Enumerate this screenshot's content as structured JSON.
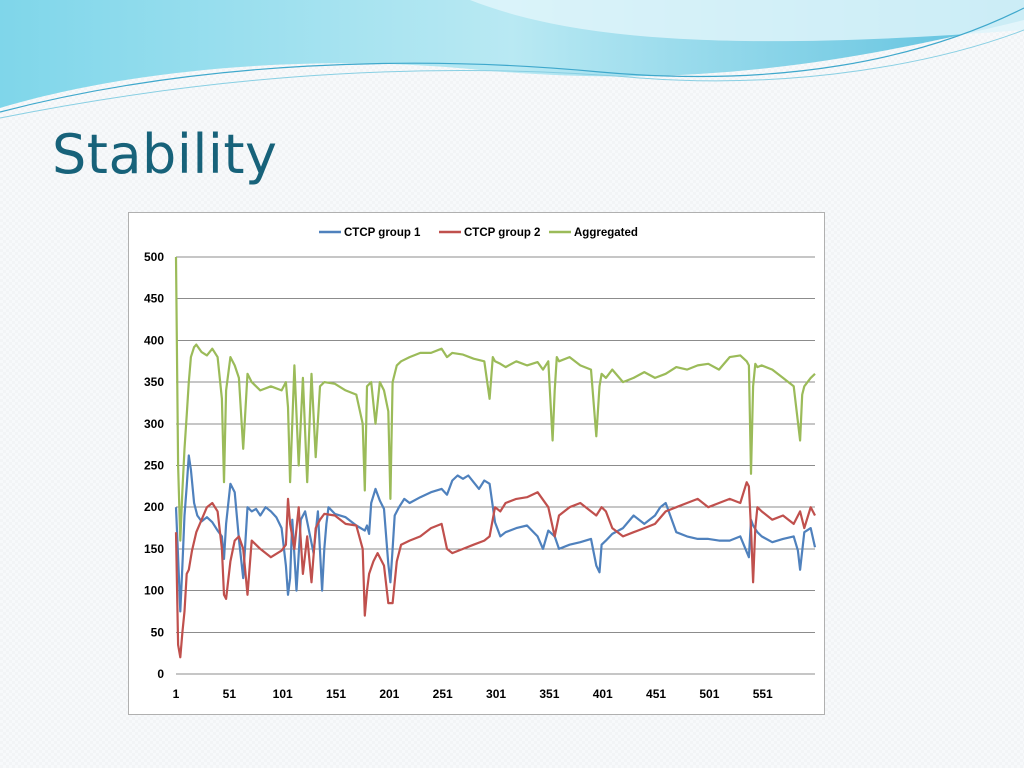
{
  "slide": {
    "title": "Stability"
  },
  "chart_data": {
    "type": "line",
    "title": "",
    "xlabel": "",
    "ylabel": "",
    "ylim": [
      0,
      500
    ],
    "xlim": [
      1,
      600
    ],
    "y_ticks": [
      0,
      50,
      100,
      150,
      200,
      250,
      300,
      350,
      400,
      450,
      500
    ],
    "x_ticks": [
      1,
      51,
      101,
      151,
      201,
      251,
      301,
      351,
      401,
      451,
      501,
      551
    ],
    "grid": "horizontal",
    "legend_position": "top",
    "series": [
      {
        "name": "CTCP group 1",
        "color": "#4f81bd",
        "x": [
          1,
          3,
          5,
          7,
          9,
          11,
          13,
          15,
          18,
          21,
          25,
          30,
          35,
          40,
          44,
          46,
          48,
          52,
          56,
          60,
          64,
          68,
          72,
          76,
          80,
          85,
          90,
          95,
          100,
          104,
          106,
          108,
          110,
          114,
          118,
          122,
          126,
          130,
          134,
          138,
          140,
          142,
          144,
          150,
          160,
          170,
          178,
          180,
          182,
          184,
          188,
          192,
          196,
          200,
          202,
          204,
          206,
          210,
          215,
          220,
          230,
          240,
          250,
          255,
          260,
          265,
          270,
          275,
          280,
          285,
          290,
          295,
          300,
          305,
          310,
          320,
          330,
          340,
          345,
          350,
          356,
          360,
          370,
          380,
          390,
          395,
          398,
          400,
          404,
          410,
          420,
          430,
          440,
          450,
          455,
          460,
          470,
          480,
          490,
          500,
          510,
          520,
          530,
          538,
          540,
          542,
          546,
          550,
          560,
          570,
          580,
          584,
          586,
          590,
          596,
          600
        ],
        "values": [
          200,
          140,
          75,
          130,
          190,
          225,
          262,
          245,
          205,
          190,
          183,
          188,
          182,
          172,
          165,
          138,
          180,
          228,
          218,
          162,
          115,
          200,
          195,
          198,
          190,
          200,
          195,
          188,
          175,
          130,
          95,
          115,
          185,
          100,
          185,
          195,
          170,
          145,
          195,
          100,
          150,
          180,
          200,
          192,
          188,
          178,
          172,
          178,
          168,
          205,
          222,
          208,
          198,
          132,
          110,
          150,
          190,
          200,
          210,
          205,
          212,
          218,
          222,
          215,
          232,
          238,
          234,
          238,
          230,
          222,
          232,
          228,
          182,
          165,
          170,
          175,
          178,
          165,
          150,
          172,
          165,
          150,
          155,
          158,
          162,
          130,
          122,
          155,
          160,
          168,
          175,
          190,
          180,
          190,
          200,
          205,
          170,
          165,
          162,
          162,
          160,
          160,
          165,
          140,
          185,
          178,
          170,
          165,
          158,
          162,
          165,
          148,
          125,
          170,
          175,
          152
        ]
      },
      {
        "name": "CTCP group 2",
        "color": "#c0504d",
        "x": [
          1,
          3,
          5,
          7,
          9,
          11,
          13,
          16,
          20,
          25,
          30,
          35,
          40,
          44,
          46,
          48,
          52,
          56,
          60,
          64,
          68,
          72,
          80,
          90,
          100,
          104,
          106,
          108,
          112,
          116,
          120,
          124,
          128,
          132,
          136,
          140,
          150,
          160,
          170,
          176,
          178,
          180,
          182,
          186,
          190,
          196,
          200,
          204,
          208,
          212,
          220,
          230,
          240,
          250,
          255,
          260,
          270,
          280,
          290,
          295,
          300,
          305,
          310,
          320,
          330,
          340,
          350,
          356,
          360,
          370,
          380,
          390,
          395,
          400,
          404,
          410,
          420,
          430,
          440,
          450,
          460,
          470,
          480,
          490,
          500,
          510,
          520,
          530,
          536,
          538,
          540,
          542,
          544,
          546,
          550,
          560,
          570,
          580,
          586,
          590,
          596,
          600
        ],
        "values": [
          170,
          35,
          20,
          50,
          75,
          120,
          125,
          148,
          170,
          185,
          200,
          205,
          195,
          150,
          95,
          90,
          135,
          160,
          165,
          150,
          95,
          160,
          150,
          140,
          148,
          155,
          210,
          180,
          150,
          200,
          120,
          165,
          110,
          175,
          185,
          192,
          190,
          180,
          178,
          150,
          70,
          100,
          120,
          135,
          145,
          130,
          85,
          85,
          135,
          155,
          160,
          165,
          175,
          180,
          150,
          145,
          150,
          155,
          160,
          165,
          200,
          195,
          205,
          210,
          212,
          218,
          200,
          165,
          190,
          200,
          205,
          195,
          190,
          200,
          195,
          175,
          165,
          170,
          175,
          180,
          195,
          200,
          205,
          210,
          200,
          205,
          210,
          205,
          230,
          225,
          175,
          110,
          175,
          200,
          195,
          185,
          190,
          180,
          195,
          175,
          200,
          190
        ]
      },
      {
        "name": "Aggregated",
        "color": "#9bbb59",
        "x": [
          1,
          3,
          5,
          7,
          9,
          11,
          13,
          15,
          18,
          20,
          25,
          30,
          35,
          40,
          44,
          46,
          48,
          52,
          56,
          60,
          64,
          68,
          72,
          80,
          90,
          100,
          104,
          106,
          108,
          112,
          116,
          120,
          124,
          128,
          132,
          136,
          140,
          150,
          160,
          170,
          176,
          178,
          180,
          184,
          188,
          192,
          196,
          200,
          202,
          204,
          208,
          212,
          220,
          230,
          240,
          250,
          255,
          260,
          270,
          280,
          290,
          295,
          298,
          300,
          305,
          310,
          320,
          330,
          340,
          345,
          350,
          354,
          356,
          358,
          360,
          370,
          380,
          390,
          395,
          398,
          400,
          404,
          410,
          420,
          430,
          440,
          450,
          460,
          470,
          480,
          490,
          500,
          510,
          520,
          530,
          536,
          538,
          540,
          542,
          544,
          546,
          550,
          560,
          570,
          580,
          586,
          588,
          590,
          596,
          600
        ],
        "values": [
          500,
          250,
          160,
          220,
          270,
          310,
          350,
          380,
          392,
          395,
          386,
          382,
          390,
          380,
          330,
          230,
          340,
          380,
          370,
          355,
          270,
          360,
          350,
          340,
          345,
          340,
          350,
          320,
          230,
          370,
          250,
          355,
          230,
          360,
          260,
          345,
          350,
          348,
          340,
          335,
          300,
          220,
          345,
          350,
          300,
          350,
          340,
          315,
          210,
          350,
          370,
          375,
          380,
          385,
          385,
          390,
          380,
          385,
          383,
          378,
          375,
          330,
          380,
          375,
          372,
          368,
          375,
          370,
          374,
          365,
          375,
          280,
          340,
          380,
          375,
          380,
          370,
          365,
          285,
          345,
          360,
          355,
          365,
          350,
          355,
          362,
          355,
          360,
          368,
          365,
          370,
          372,
          365,
          380,
          382,
          375,
          370,
          240,
          345,
          372,
          368,
          370,
          365,
          355,
          345,
          280,
          335,
          345,
          355,
          360
        ]
      }
    ]
  }
}
